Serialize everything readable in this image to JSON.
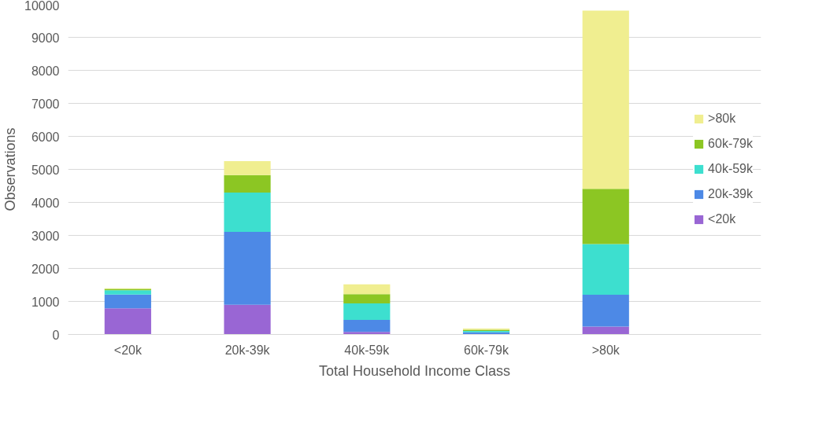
{
  "chart_data": {
    "type": "bar",
    "stacked": true,
    "xlabel": "Total Household Income Class",
    "ylabel": "Observations",
    "categories": [
      "<20k",
      "20k-39k",
      "40k-59k",
      "60k-79k",
      ">80k"
    ],
    "series": [
      {
        "name": "<20k",
        "color": "#9966d4",
        "values": [
          790,
          900,
          80,
          10,
          240
        ]
      },
      {
        "name": "20k-39k",
        "color": "#4d89e6",
        "values": [
          420,
          2210,
          360,
          55,
          960
        ]
      },
      {
        "name": "40k-59k",
        "color": "#3ddfcf",
        "values": [
          130,
          1190,
          500,
          45,
          1540
        ]
      },
      {
        "name": "60k-79k",
        "color": "#8cc623",
        "values": [
          40,
          530,
          280,
          30,
          1670
        ]
      },
      {
        "name": ">80k",
        "color": "#f0ee90",
        "values": [
          20,
          420,
          300,
          40,
          5400
        ]
      }
    ],
    "ylim": [
      0,
      10000
    ],
    "yticks": [
      0,
      1000,
      2000,
      3000,
      4000,
      5000,
      6000,
      7000,
      8000,
      9000,
      10000
    ],
    "grid": "y",
    "legend": "right"
  }
}
